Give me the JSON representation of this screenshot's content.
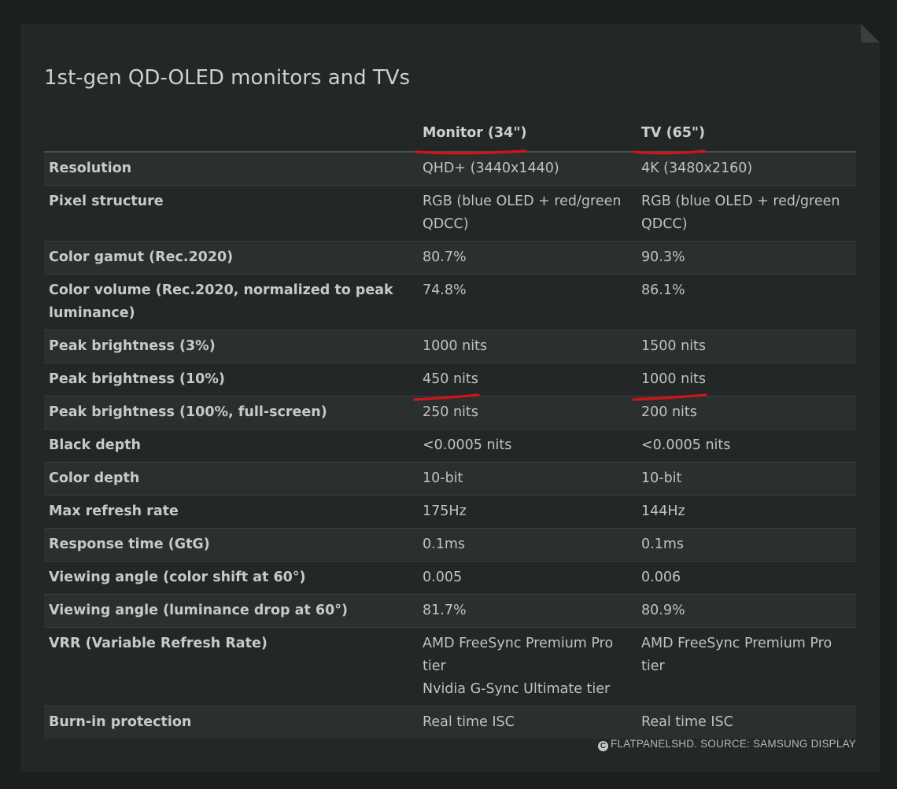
{
  "title": "1st-gen QD-OLED monitors and TVs",
  "table": {
    "headers": [
      "",
      "Monitor (34\")",
      "TV (65\")"
    ],
    "rows": [
      {
        "label": "Resolution",
        "monitor": [
          "QHD+ (3440x1440)"
        ],
        "tv": [
          "4K (3480x2160)"
        ]
      },
      {
        "label": "Pixel structure",
        "monitor": [
          "RGB (blue OLED + red/green QDCC)"
        ],
        "tv": [
          "RGB (blue OLED + red/green QDCC)"
        ]
      },
      {
        "label": "Color gamut (Rec.2020)",
        "monitor": [
          "80.7%"
        ],
        "tv": [
          "90.3%"
        ]
      },
      {
        "label": "Color volume (Rec.2020, normalized to peak luminance)",
        "monitor": [
          "74.8%"
        ],
        "tv": [
          "86.1%"
        ]
      },
      {
        "label": "Peak brightness (3%)",
        "monitor": [
          "1000 nits"
        ],
        "tv": [
          "1500 nits"
        ]
      },
      {
        "label": "Peak brightness (10%)",
        "monitor": [
          "450 nits"
        ],
        "tv": [
          "1000 nits"
        ]
      },
      {
        "label": "Peak brightness (100%, full-screen)",
        "monitor": [
          "250 nits"
        ],
        "tv": [
          "200 nits"
        ]
      },
      {
        "label": "Black depth",
        "monitor": [
          "<0.0005 nits"
        ],
        "tv": [
          "<0.0005 nits"
        ]
      },
      {
        "label": "Color depth",
        "monitor": [
          "10-bit"
        ],
        "tv": [
          "10-bit"
        ]
      },
      {
        "label": "Max refresh rate",
        "monitor": [
          "175Hz"
        ],
        "tv": [
          "144Hz"
        ]
      },
      {
        "label": "Response time (GtG)",
        "monitor": [
          "0.1ms"
        ],
        "tv": [
          "0.1ms"
        ]
      },
      {
        "label": "Viewing angle (color shift at 60°)",
        "monitor": [
          "0.005"
        ],
        "tv": [
          "0.006"
        ]
      },
      {
        "label": "Viewing angle (luminance drop at 60°)",
        "monitor": [
          "81.7%"
        ],
        "tv": [
          "80.9%"
        ]
      },
      {
        "label": "VRR (Variable Refresh Rate)",
        "monitor": [
          "AMD FreeSync Premium Pro tier",
          "Nvidia G-Sync Ultimate tier"
        ],
        "tv": [
          "AMD FreeSync Premium Pro tier"
        ]
      },
      {
        "label": "Burn-in protection",
        "monitor": [
          "Real time ISC"
        ],
        "tv": [
          "Real time ISC"
        ]
      }
    ]
  },
  "credit": {
    "icon": "copyright-icon",
    "text": "FLATPANELSHD. SOURCE: SAMSUNG DISPLAY"
  },
  "colors": {
    "background": "#1c1f1f",
    "card": "#232727",
    "row_alt": "#2b2f2f",
    "annotation_red": "#d0141a"
  }
}
